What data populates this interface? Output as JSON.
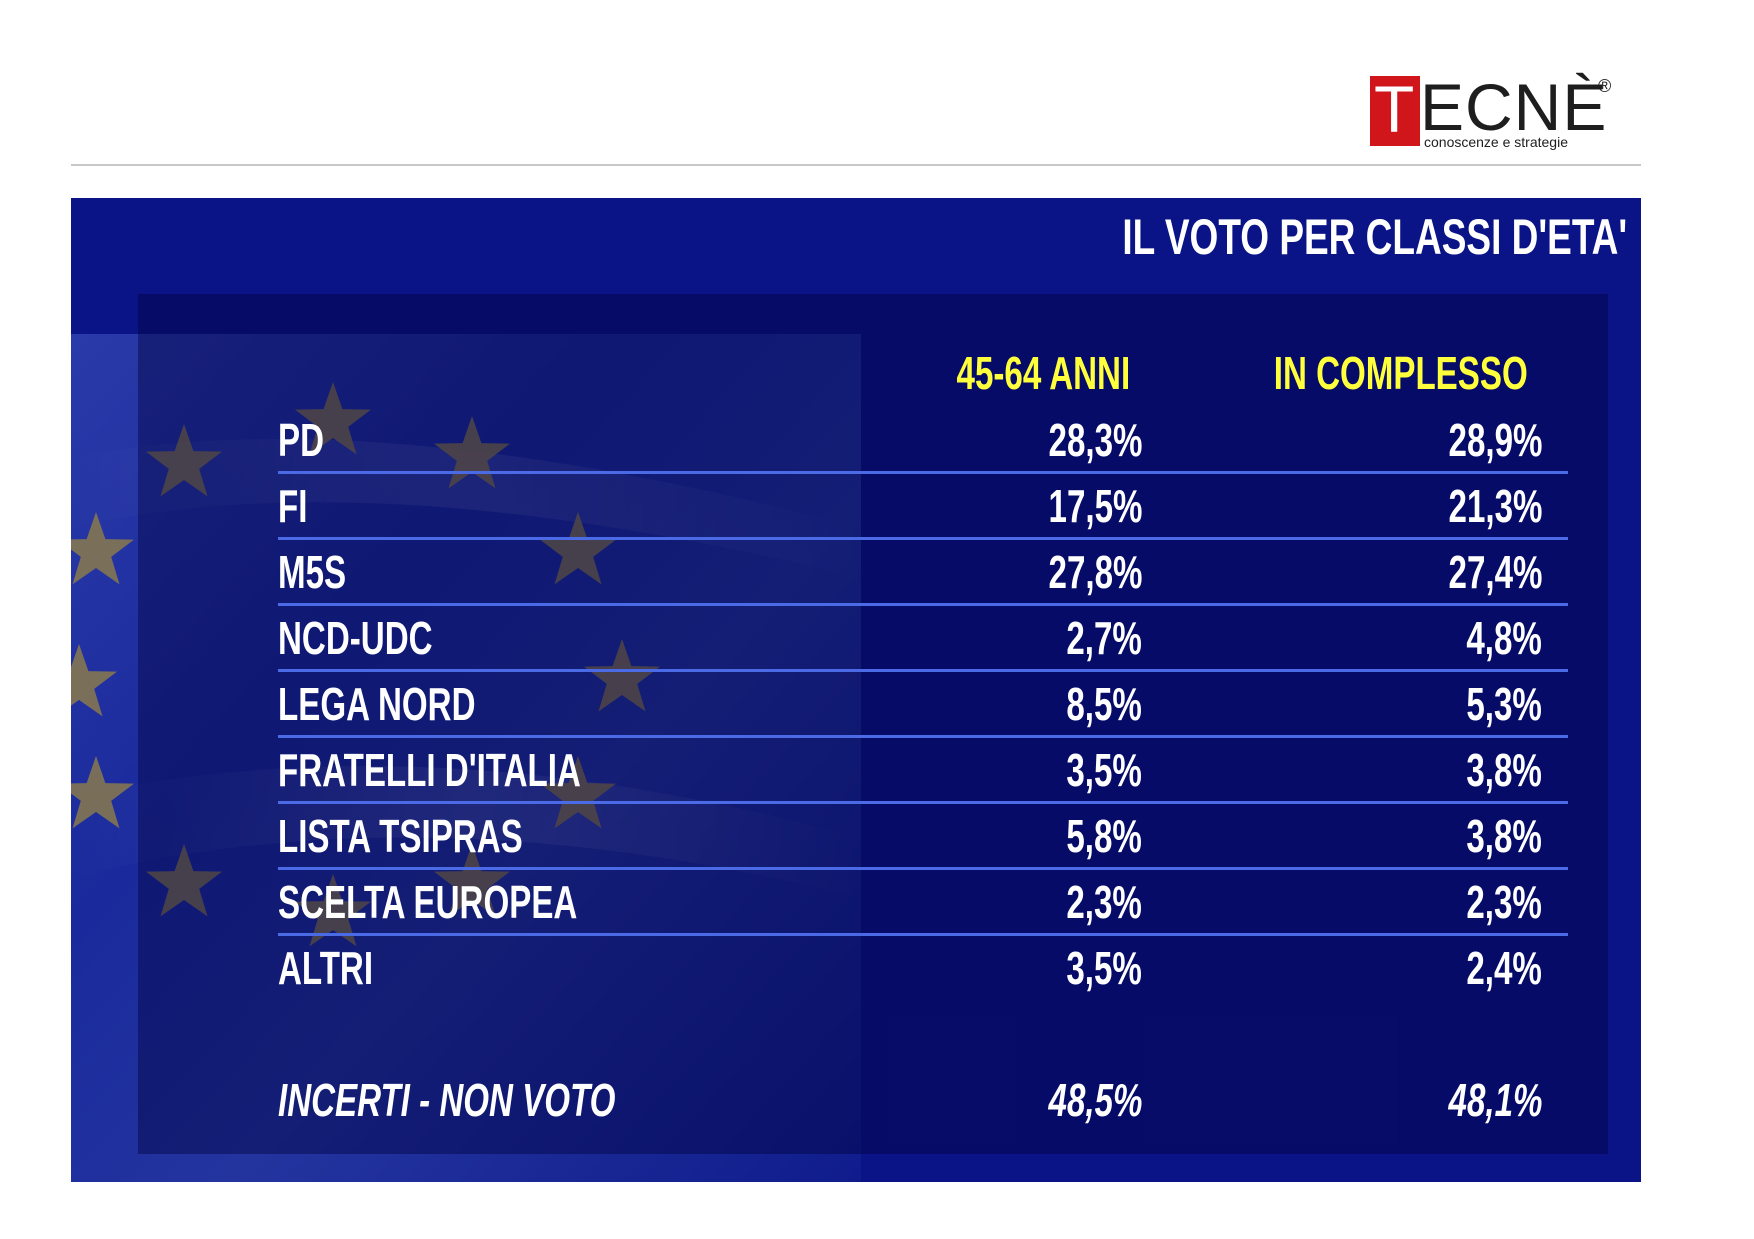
{
  "brand": {
    "logo_initial": "T",
    "logo_rest": "ECNÈ",
    "logo_registered": "®",
    "logo_tagline": "conoscenze e strategie",
    "accent_color": "#d0161b"
  },
  "panel": {
    "background_color": "#0a1487",
    "header_color": "#ffff3c",
    "divider_color": "#4b6ae6"
  },
  "chart_data": {
    "type": "table",
    "title": "IL VOTO PER CLASSI D'ETA'",
    "columns": [
      "45-64 ANNI",
      "IN COMPLESSO"
    ],
    "rows": [
      {
        "label": "PD",
        "values": [
          "28,3%",
          "28,9%"
        ]
      },
      {
        "label": "FI",
        "values": [
          "17,5%",
          "21,3%"
        ]
      },
      {
        "label": "M5S",
        "values": [
          "27,8%",
          "27,4%"
        ]
      },
      {
        "label": "NCD-UDC",
        "values": [
          "2,7%",
          "4,8%"
        ]
      },
      {
        "label": "LEGA NORD",
        "values": [
          "8,5%",
          "5,3%"
        ]
      },
      {
        "label": "FRATELLI D'ITALIA",
        "values": [
          "3,5%",
          "3,8%"
        ]
      },
      {
        "label": "LISTA TSIPRAS",
        "values": [
          "5,8%",
          "3,8%"
        ]
      },
      {
        "label": "SCELTA EUROPEA",
        "values": [
          "2,3%",
          "2,3%"
        ]
      },
      {
        "label": "ALTRI",
        "values": [
          "3,5%",
          "2,4%"
        ]
      }
    ],
    "footer": {
      "label": "INCERTI - NON VOTO",
      "values": [
        "48,5%",
        "48,1%"
      ]
    }
  }
}
